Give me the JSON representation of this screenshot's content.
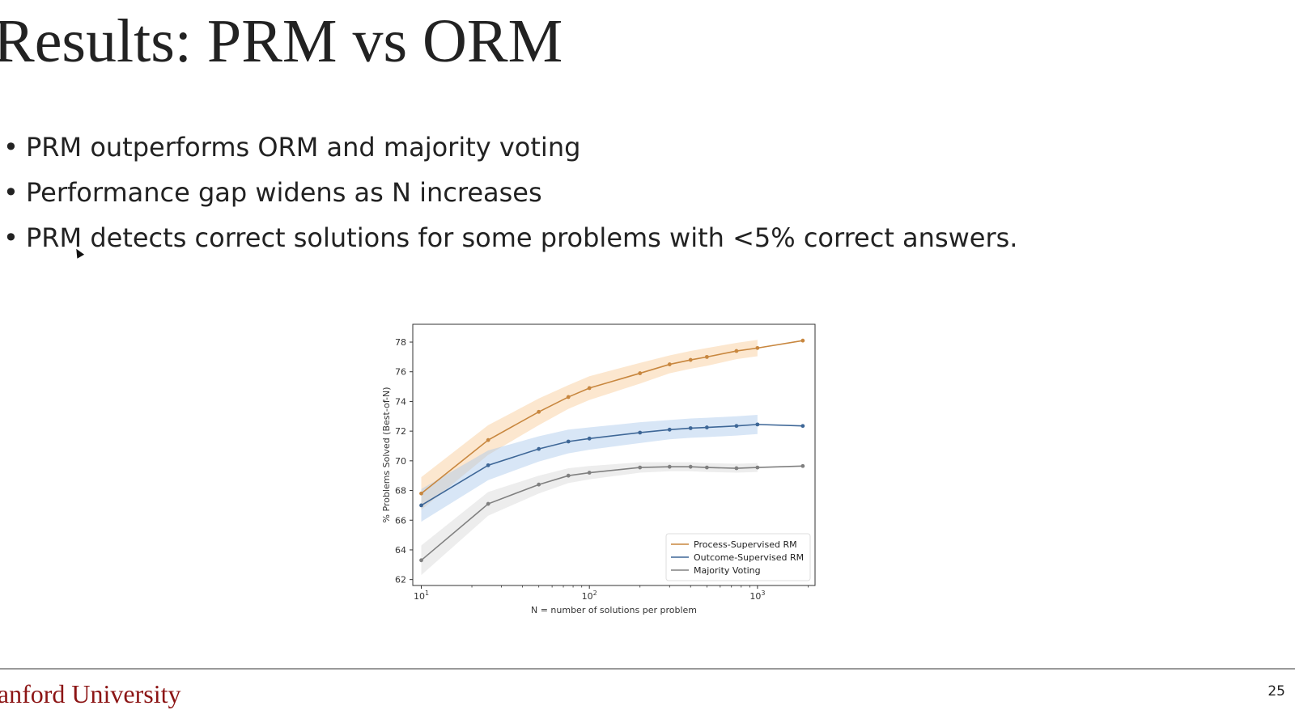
{
  "slide": {
    "title": "Results: PRM vs ORM",
    "bullets": [
      "PRM outperforms ORM and majority voting",
      "Performance gap widens as N increases",
      "PRM detects correct solutions for some problems with <5% correct answers."
    ],
    "footer_logo": "tanford University",
    "page_number": "25",
    "colors": {
      "logo": "#8c1515",
      "text": "#222222"
    }
  },
  "chart_data": {
    "type": "line",
    "xscale": "log",
    "xlabel": "N = number of solutions per problem",
    "ylabel": "% Problems Solved (Best-of-N)",
    "xlim": [
      8.9,
      2200
    ],
    "ylim": [
      61.6,
      79.2
    ],
    "xticks": [
      {
        "value": 10,
        "base": "10",
        "exp": "1"
      },
      {
        "value": 100,
        "base": "10",
        "exp": "2"
      },
      {
        "value": 1000,
        "base": "10",
        "exp": "3"
      }
    ],
    "yticks": [
      62,
      64,
      66,
      68,
      70,
      72,
      74,
      76,
      78
    ],
    "x": [
      10,
      25,
      50,
      75,
      100,
      200,
      300,
      400,
      500,
      750,
      1000,
      1860
    ],
    "series": [
      {
        "name": "Process-Supervised RM",
        "color": "#c8873f",
        "band_color": "#f9c994",
        "values": [
          67.8,
          71.4,
          73.3,
          74.3,
          74.9,
          75.9,
          76.5,
          76.8,
          77.0,
          77.4,
          77.6,
          78.1
        ],
        "band_half_width": [
          1.1,
          1.0,
          0.9,
          0.8,
          0.8,
          0.7,
          0.6,
          0.6,
          0.6,
          0.55,
          0.55,
          0
        ]
      },
      {
        "name": "Outcome-Supervised RM",
        "color": "#3e6797",
        "band_color": "#a9c8ec",
        "values": [
          67.0,
          69.7,
          70.8,
          71.3,
          71.5,
          71.9,
          72.1,
          72.2,
          72.25,
          72.35,
          72.45,
          72.35
        ],
        "band_half_width": [
          1.1,
          1.0,
          0.85,
          0.8,
          0.75,
          0.7,
          0.65,
          0.65,
          0.65,
          0.65,
          0.65,
          0
        ]
      },
      {
        "name": "Majority Voting",
        "color": "#808080",
        "band_color": "#d6d6d6",
        "values": [
          63.3,
          67.1,
          68.4,
          69.0,
          69.2,
          69.55,
          69.6,
          69.6,
          69.55,
          69.5,
          69.55,
          69.65
        ],
        "band_half_width": [
          1.0,
          0.8,
          0.6,
          0.5,
          0.45,
          0.35,
          0.3,
          0.3,
          0.3,
          0.3,
          0.3,
          0
        ]
      }
    ],
    "legend_position": "lower-right",
    "grid": false
  }
}
